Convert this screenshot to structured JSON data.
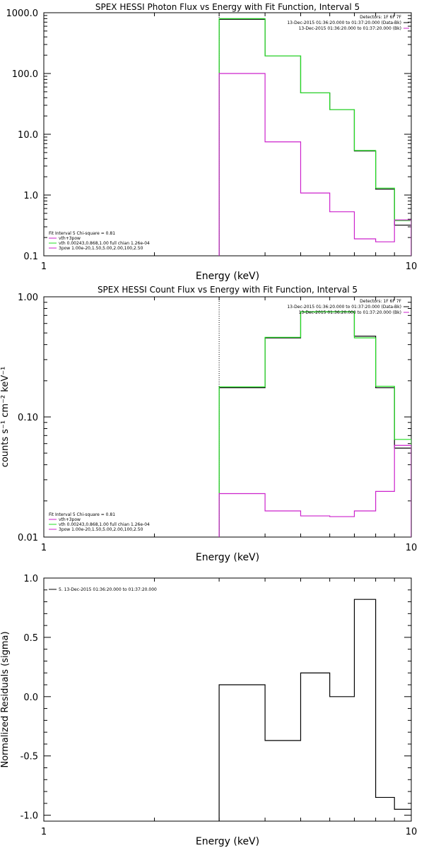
{
  "colors": {
    "black": "#000000",
    "green": "#22dd22",
    "magenta": "#cc22cc"
  },
  "chart_data": [
    {
      "type": "line",
      "title": "SPEX HESSI Photon Flux vs Energy with Fit Function, Interval 5",
      "xlabel": "Energy (keV)",
      "ylabel": "",
      "xscale": "log",
      "yscale": "log",
      "xlim": [
        1,
        10
      ],
      "ylim": [
        0.1,
        1000
      ],
      "xticks": [
        {
          "v": 1,
          "label": "1"
        },
        {
          "v": 10,
          "label": "10"
        }
      ],
      "yticks": [
        {
          "v": 1000,
          "label": "1000.0"
        },
        {
          "v": 100,
          "label": "100.0"
        },
        {
          "v": 10,
          "label": "10.0"
        },
        {
          "v": 1,
          "label": "1.0"
        },
        {
          "v": 0.1,
          "label": "0.1"
        }
      ],
      "vline": 3,
      "edges": [
        3,
        4,
        5,
        6,
        7,
        8,
        9,
        10
      ],
      "series": [
        {
          "name": "Fit Interval 5 Chi-square = 0.81",
          "color": "black",
          "values": [
            780,
            195,
            48,
            25.5,
            5.3,
            1.25,
            0.32
          ]
        },
        {
          "name": "vth 0.00243,0.868,1.00 full chian 1.26e-04",
          "color": "green",
          "values": [
            800,
            195,
            48,
            25.5,
            5.4,
            1.3,
            0.38
          ]
        },
        {
          "name": "vth+3pow",
          "color": "magenta",
          "values": [
            100,
            7.5,
            1.08,
            0.53,
            0.19,
            0.17,
            0.39
          ]
        }
      ],
      "legend_right": [
        {
          "text": "Detectors: 1F 6F 7F",
          "color": "black"
        },
        {
          "text": "13-Dec-2015 01:36:20.000 to 01:37:20.000 (Data-Bk)",
          "color": "black"
        },
        {
          "text": "13-Dec-2015 01:36:20.000 to 01:37:20.000 (Bk)",
          "color": "magenta"
        }
      ],
      "legend_left": [
        {
          "text": "Fit Interval 5   Chi-square = 0.81",
          "color": "black"
        },
        {
          "text": "vth+3pow",
          "color": "magenta"
        },
        {
          "text": "vth 0.00243,0.868,1.00  full chian 1.26e-04",
          "color": "green"
        },
        {
          "text": "3pow 1.00e-20,1.50,5.00,2.00,100,2.50",
          "color": "magenta"
        }
      ]
    },
    {
      "type": "line",
      "title": "SPEX HESSI Count Flux vs Energy with Fit Function, Interval 5",
      "xlabel": "Energy (keV)",
      "ylabel": "counts s⁻¹ cm⁻² keV⁻¹",
      "xscale": "log",
      "yscale": "log",
      "xlim": [
        1,
        10
      ],
      "ylim": [
        0.01,
        1
      ],
      "xticks": [
        {
          "v": 1,
          "label": "1"
        },
        {
          "v": 10,
          "label": "10"
        }
      ],
      "yticks": [
        {
          "v": 1,
          "label": "1.00"
        },
        {
          "v": 0.1,
          "label": "0.10"
        },
        {
          "v": 0.01,
          "label": "0.01"
        }
      ],
      "vline": 3,
      "edges": [
        3,
        4,
        5,
        6,
        7,
        8,
        9,
        10
      ],
      "series": [
        {
          "name": "Data-Bk",
          "color": "black",
          "values": [
            0.175,
            0.455,
            0.75,
            0.75,
            0.47,
            0.175,
            0.055
          ]
        },
        {
          "name": "Fit",
          "color": "green",
          "values": [
            0.178,
            0.46,
            0.75,
            0.75,
            0.455,
            0.18,
            0.065
          ]
        },
        {
          "name": "Bk",
          "color": "magenta",
          "values": [
            0.023,
            0.0165,
            0.015,
            0.0148,
            0.0165,
            0.024,
            0.058
          ]
        }
      ],
      "legend_right": [
        {
          "text": "Detectors: 1F 6F 7F",
          "color": "black"
        },
        {
          "text": "13-Dec-2015 01:36:20.000 to 01:37:20.000 (Data-Bk)",
          "color": "black"
        },
        {
          "text": "13-Dec-2015 01:36:20.000 to 01:37:20.000 (Bk)",
          "color": "magenta"
        }
      ],
      "legend_left": [
        {
          "text": "Fit Interval 5   Chi-square = 0.81",
          "color": "black"
        },
        {
          "text": "vth+3pow",
          "color": "magenta"
        },
        {
          "text": "vth 0.00243,0.868,1.00  full chian 1.26e-04",
          "color": "green"
        },
        {
          "text": "3pow 1.00e-20,1.50,5.00,2.00,100,2.50",
          "color": "magenta"
        }
      ]
    },
    {
      "type": "line",
      "title": "",
      "xlabel": "Energy (keV)",
      "ylabel": "Normalized Residuals (sigma)",
      "xscale": "log",
      "yscale": "linear",
      "xlim": [
        1,
        10
      ],
      "ylim": [
        -1.05,
        1.0
      ],
      "xticks": [
        {
          "v": 1,
          "label": "1"
        },
        {
          "v": 10,
          "label": "10"
        }
      ],
      "yticks": [
        {
          "v": 1.0,
          "label": "1.0"
        },
        {
          "v": 0.5,
          "label": "0.5"
        },
        {
          "v": 0.0,
          "label": "0.0"
        },
        {
          "v": -0.5,
          "label": "-0.5"
        },
        {
          "v": -1.0,
          "label": "-1.0"
        }
      ],
      "edges": [
        3,
        4,
        5,
        6,
        7,
        8,
        9,
        10
      ],
      "series": [
        {
          "name": "5. 13-Dec-2015 01:36:20.000 to 01:37:20.000",
          "color": "black",
          "values": [
            0.1,
            -0.37,
            0.2,
            0.0,
            0.82,
            -0.85,
            -0.95
          ]
        }
      ],
      "legend_left": [
        {
          "text": "5. 13-Dec-2015 01:36:20.000 to 01:37:20.000",
          "color": "black"
        }
      ]
    }
  ]
}
